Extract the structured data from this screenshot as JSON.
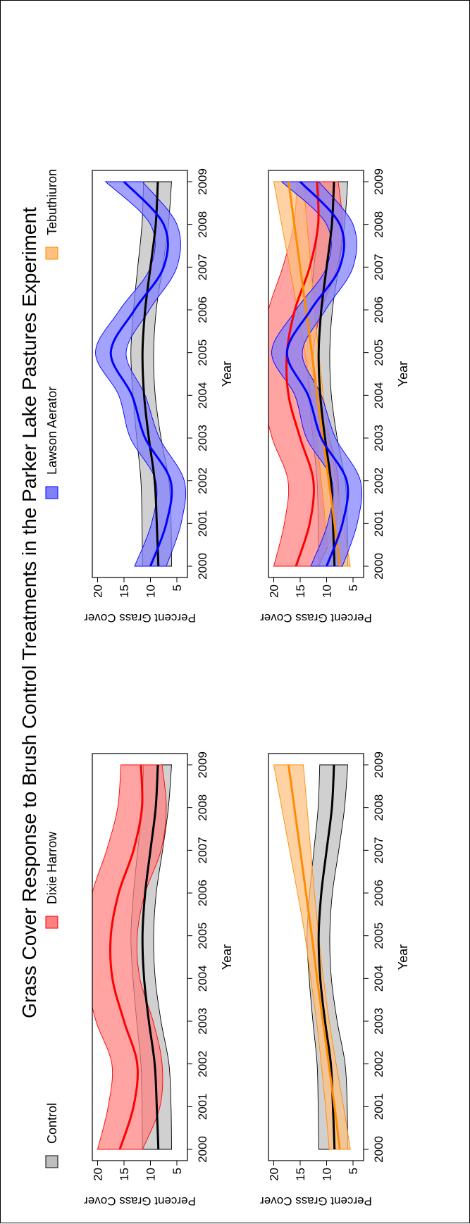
{
  "title": "Grass Cover Response to Brush Control Treatments in the Parker Lake Pastures Experiment",
  "legend": [
    {
      "label": "Control",
      "color": "#000000",
      "fill": "#bebebe"
    },
    {
      "label": "Dixie Harrow",
      "color": "#ff0000",
      "fill": "#ff8080"
    },
    {
      "label": "Lawson Aerator",
      "color": "#0000ff",
      "fill": "#8080ff"
    },
    {
      "label": "Tebuthiuron",
      "color": "#ff8c00",
      "fill": "#ffc080"
    }
  ],
  "chart_data": [
    {
      "type": "line",
      "panel": "top-left",
      "xlabel": "Year",
      "ylabel": "Percent Grass Cover",
      "xlim": [
        2000,
        2009
      ],
      "ylim": [
        3,
        21
      ],
      "xticks": [
        "2000",
        "2001",
        "2002",
        "2003",
        "2004",
        "2005",
        "2006",
        "2007",
        "2008",
        "2009"
      ],
      "yticks": [
        "5",
        "10",
        "15",
        "20"
      ],
      "x": [
        2000,
        2001,
        2002,
        2003,
        2004,
        2005,
        2006,
        2007,
        2008,
        2009
      ],
      "series": [
        {
          "name": "Control",
          "color": "#000000",
          "fill": "#bebebe",
          "values": [
            8.5,
            8.8,
            9.2,
            10.3,
            11.2,
            11.5,
            11.0,
            10.0,
            9.0,
            8.6
          ],
          "lower": [
            6.0,
            6.1,
            6.5,
            8.0,
            9.1,
            9.4,
            8.9,
            7.7,
            6.6,
            6.0
          ],
          "upper": [
            11.5,
            11.6,
            11.8,
            12.6,
            13.3,
            13.7,
            13.2,
            12.4,
            11.6,
            11.3
          ]
        },
        {
          "name": "Dixie Harrow",
          "color": "#ff0000",
          "fill": "#ff8080",
          "values": [
            15.8,
            13.2,
            12.5,
            15.0,
            17.2,
            17.5,
            16.0,
            13.2,
            11.6,
            11.8
          ],
          "lower": [
            11.5,
            8.2,
            7.8,
            9.5,
            12.0,
            12.5,
            11.0,
            8.0,
            7.0,
            7.8
          ],
          "upper": [
            20.0,
            18.0,
            17.3,
            20.3,
            22.0,
            22.0,
            21.0,
            18.3,
            16.2,
            15.6
          ]
        }
      ]
    },
    {
      "type": "line",
      "panel": "bottom-left",
      "xlabel": "Year",
      "ylabel": "Percent Grass Cover",
      "xlim": [
        2000,
        2009
      ],
      "ylim": [
        3,
        21
      ],
      "xticks": [
        "2000",
        "2001",
        "2002",
        "2003",
        "2004",
        "2005",
        "2006",
        "2007",
        "2008",
        "2009"
      ],
      "yticks": [
        "5",
        "10",
        "15",
        "20"
      ],
      "x": [
        2000,
        2001,
        2002,
        2003,
        2004,
        2005,
        2006,
        2007,
        2008,
        2009
      ],
      "series": [
        {
          "name": "Control",
          "color": "#000000",
          "fill": "#bebebe",
          "values": [
            8.5,
            8.8,
            9.2,
            10.3,
            11.2,
            11.5,
            11.0,
            10.0,
            9.0,
            8.6
          ],
          "lower": [
            6.0,
            6.1,
            6.5,
            8.0,
            9.1,
            9.4,
            8.9,
            7.7,
            6.6,
            6.0
          ],
          "upper": [
            11.5,
            11.6,
            11.8,
            12.6,
            13.3,
            13.7,
            13.2,
            12.4,
            11.6,
            11.3
          ]
        },
        {
          "name": "Tebuthiuron",
          "color": "#ff8c00",
          "fill": "#ffc080",
          "values": [
            7.5,
            8.5,
            9.6,
            10.7,
            11.8,
            12.8,
            13.9,
            15.0,
            16.1,
            17.2
          ],
          "lower": [
            5.5,
            6.8,
            8.2,
            9.5,
            10.6,
            11.5,
            12.3,
            13.0,
            13.7,
            14.4
          ],
          "upper": [
            9.5,
            10.2,
            11.0,
            11.9,
            13.0,
            14.1,
            15.5,
            17.0,
            18.5,
            20.0
          ]
        }
      ]
    },
    {
      "type": "line",
      "panel": "top-right",
      "xlabel": "Year",
      "ylabel": "Percent Grass Cover",
      "xlim": [
        2000,
        2009
      ],
      "ylim": [
        3,
        21
      ],
      "xticks": [
        "2000",
        "2001",
        "2002",
        "2003",
        "2004",
        "2005",
        "2006",
        "2007",
        "2008",
        "2009"
      ],
      "yticks": [
        "5",
        "10",
        "15",
        "20"
      ],
      "x": [
        2000,
        2001,
        2002,
        2003,
        2004,
        2005,
        2006,
        2007,
        2008,
        2009
      ],
      "series": [
        {
          "name": "Control",
          "color": "#000000",
          "fill": "#bebebe",
          "values": [
            8.5,
            8.8,
            9.2,
            10.3,
            11.2,
            11.5,
            11.0,
            10.0,
            9.0,
            8.6
          ],
          "lower": [
            6.0,
            6.1,
            6.5,
            8.0,
            9.1,
            9.4,
            8.9,
            7.7,
            6.6,
            6.0
          ],
          "upper": [
            11.5,
            11.6,
            11.8,
            12.6,
            13.3,
            13.7,
            13.2,
            12.4,
            11.6,
            11.3
          ]
        },
        {
          "name": "Lawson Aerator",
          "color": "#0000ff",
          "fill": "#8080ff",
          "values": [
            10.0,
            7.0,
            6.2,
            11.0,
            13.5,
            17.5,
            13.0,
            7.5,
            7.5,
            15.0
          ],
          "lower": [
            7.0,
            4.2,
            3.6,
            8.3,
            11.0,
            14.6,
            10.2,
            5.0,
            5.0,
            11.5
          ],
          "upper": [
            13.0,
            9.8,
            9.0,
            13.8,
            16.0,
            20.4,
            15.8,
            10.0,
            10.0,
            18.5
          ]
        }
      ]
    },
    {
      "type": "line",
      "panel": "bottom-right",
      "xlabel": "Year",
      "ylabel": "Percent Grass Cover",
      "xlim": [
        2000,
        2009
      ],
      "ylim": [
        3,
        21
      ],
      "xticks": [
        "2000",
        "2001",
        "2002",
        "2003",
        "2004",
        "2005",
        "2006",
        "2007",
        "2008",
        "2009"
      ],
      "yticks": [
        "5",
        "10",
        "15",
        "20"
      ],
      "x": [
        2000,
        2001,
        2002,
        2003,
        2004,
        2005,
        2006,
        2007,
        2008,
        2009
      ],
      "series": [
        {
          "name": "Control",
          "color": "#000000",
          "fill": "#bebebe",
          "values": [
            8.5,
            8.8,
            9.2,
            10.3,
            11.2,
            11.5,
            11.0,
            10.0,
            9.0,
            8.6
          ],
          "lower": [
            6.0,
            6.1,
            6.5,
            8.0,
            9.1,
            9.4,
            8.9,
            7.7,
            6.6,
            6.0
          ],
          "upper": [
            11.5,
            11.6,
            11.8,
            12.6,
            13.3,
            13.7,
            13.2,
            12.4,
            11.6,
            11.3
          ]
        },
        {
          "name": "Dixie Harrow",
          "color": "#ff0000",
          "fill": "#ff8080",
          "values": [
            15.8,
            13.2,
            12.5,
            15.0,
            17.2,
            17.5,
            16.0,
            13.2,
            11.6,
            11.8
          ],
          "lower": [
            11.5,
            8.2,
            7.8,
            9.5,
            12.0,
            12.5,
            11.0,
            8.0,
            7.0,
            7.8
          ],
          "upper": [
            20.0,
            18.0,
            17.3,
            20.3,
            22.0,
            22.0,
            21.0,
            18.3,
            16.2,
            15.6
          ]
        },
        {
          "name": "Tebuthiuron",
          "color": "#ff8c00",
          "fill": "#ffc080",
          "values": [
            7.5,
            8.5,
            9.6,
            10.7,
            11.8,
            12.8,
            13.9,
            15.0,
            16.1,
            17.2
          ],
          "lower": [
            5.5,
            6.8,
            8.2,
            9.5,
            10.6,
            11.5,
            12.3,
            13.0,
            13.7,
            14.4
          ],
          "upper": [
            9.5,
            10.2,
            11.0,
            11.9,
            13.0,
            14.1,
            15.5,
            17.0,
            18.5,
            20.0
          ]
        },
        {
          "name": "Lawson Aerator",
          "color": "#0000ff",
          "fill": "#8080ff",
          "values": [
            10.0,
            7.0,
            6.2,
            11.0,
            13.5,
            17.5,
            13.0,
            7.5,
            7.5,
            15.0
          ],
          "lower": [
            7.0,
            4.2,
            3.6,
            8.3,
            11.0,
            14.6,
            10.2,
            5.0,
            5.0,
            11.5
          ],
          "upper": [
            13.0,
            9.8,
            9.0,
            13.8,
            16.0,
            20.4,
            15.8,
            10.0,
            10.0,
            18.5
          ]
        }
      ]
    }
  ]
}
